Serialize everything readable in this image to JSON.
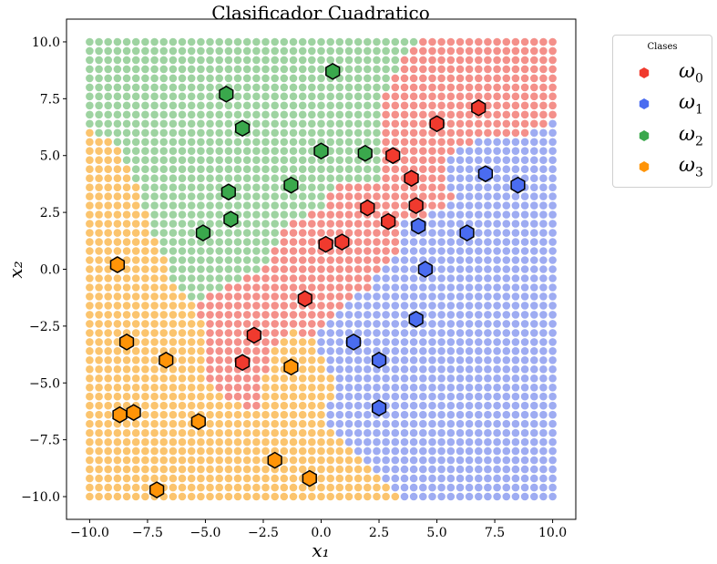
{
  "chart_data": {
    "type": "scatter",
    "title": "Clasificador Cuadratico",
    "xlabel": "x₁",
    "ylabel": "x₂",
    "xlim": [
      -11,
      11
    ],
    "ylim": [
      -11,
      11
    ],
    "xticks": [
      -10.0,
      -7.5,
      -5.0,
      -2.5,
      0.0,
      2.5,
      5.0,
      7.5,
      10.0
    ],
    "yticks": [
      -10.0,
      -7.5,
      -5.0,
      -2.5,
      0.0,
      2.5,
      5.0,
      7.5,
      10.0
    ],
    "xtick_labels": [
      "−10.0",
      "−7.5",
      "−5.0",
      "−2.5",
      "0.0",
      "2.5",
      "5.0",
      "7.5",
      "10.0"
    ],
    "ytick_labels": [
      "−10.0",
      "−7.5",
      "−5.0",
      "−2.5",
      "0.0",
      "2.5",
      "5.0",
      "7.5",
      "10.0"
    ],
    "grid": false,
    "legend_position": "outside-top-right",
    "legend_title": "Clases",
    "background_grid": {
      "start": -10,
      "end": 10,
      "step": 0.4,
      "description_classes": [
        "ω₀",
        "ω₁",
        "ω₂",
        "ω₃"
      ]
    },
    "series": [
      {
        "name": "ω",
        "subscript": "0",
        "color": "#f03a2e",
        "region_color": "#f4908a",
        "points": [
          [
            6.8,
            7.1
          ],
          [
            5.0,
            6.4
          ],
          [
            3.1,
            5.0
          ],
          [
            3.9,
            4.0
          ],
          [
            4.1,
            2.8
          ],
          [
            2.0,
            2.7
          ],
          [
            2.9,
            2.1
          ],
          [
            0.9,
            1.2
          ],
          [
            0.2,
            1.1
          ],
          [
            -0.7,
            -1.3
          ],
          [
            -2.9,
            -2.9
          ],
          [
            -3.4,
            -4.1
          ]
        ]
      },
      {
        "name": "ω",
        "subscript": "1",
        "color": "#4a6cf0",
        "region_color": "#9eacf2",
        "points": [
          [
            8.5,
            3.7
          ],
          [
            7.1,
            4.2
          ],
          [
            4.2,
            1.9
          ],
          [
            6.3,
            1.6
          ],
          [
            4.5,
            0.0
          ],
          [
            4.1,
            -2.2
          ],
          [
            1.4,
            -3.2
          ],
          [
            2.5,
            -4.0
          ],
          [
            2.5,
            -6.1
          ]
        ]
      },
      {
        "name": "ω",
        "subscript": "2",
        "color": "#3aa84c",
        "region_color": "#9ed3a1",
        "points": [
          [
            0.5,
            8.7
          ],
          [
            -4.1,
            7.7
          ],
          [
            -3.4,
            6.2
          ],
          [
            0.0,
            5.2
          ],
          [
            1.9,
            5.1
          ],
          [
            -4.0,
            3.4
          ],
          [
            -1.3,
            3.7
          ],
          [
            -3.9,
            2.2
          ],
          [
            -5.1,
            1.6
          ]
        ]
      },
      {
        "name": "ω",
        "subscript": "3",
        "color": "#ff9408",
        "region_color": "#fbc46e",
        "points": [
          [
            -8.8,
            0.2
          ],
          [
            -8.4,
            -3.2
          ],
          [
            -6.7,
            -4.0
          ],
          [
            -1.3,
            -4.3
          ],
          [
            -8.1,
            -6.3
          ],
          [
            -8.7,
            -6.4
          ],
          [
            -5.3,
            -6.7
          ],
          [
            -2.0,
            -8.4
          ],
          [
            -0.5,
            -9.2
          ],
          [
            -7.1,
            -9.7
          ]
        ]
      }
    ]
  }
}
